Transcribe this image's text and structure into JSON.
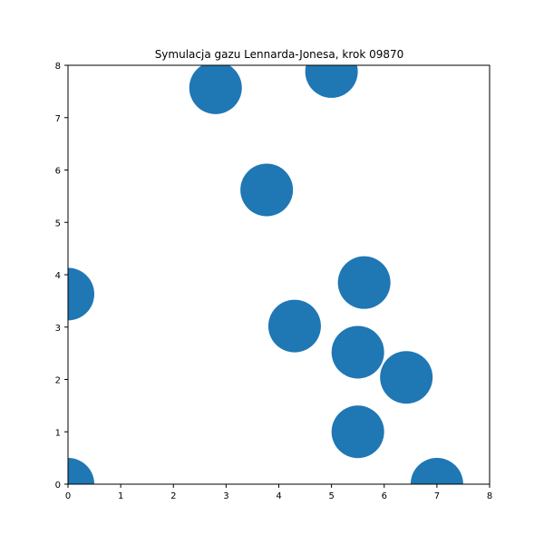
{
  "chart_data": {
    "type": "scatter",
    "title": "Symulacja gazu Lennarda-Jonesa, krok 09870",
    "xlabel": "",
    "ylabel": "",
    "xlim": [
      0,
      8
    ],
    "ylim": [
      0,
      8
    ],
    "x_ticks": [
      "0",
      "1",
      "2",
      "3",
      "4",
      "5",
      "6",
      "7",
      "8"
    ],
    "y_ticks": [
      "0",
      "1",
      "2",
      "3",
      "4",
      "5",
      "6",
      "7",
      "8"
    ],
    "grid": false,
    "marker_color": "#1f77b4",
    "points": [
      {
        "x": 2.8,
        "y": 7.57
      },
      {
        "x": 5.0,
        "y": 7.88
      },
      {
        "x": 3.77,
        "y": 5.62
      },
      {
        "x": 0.0,
        "y": 3.63
      },
      {
        "x": 5.62,
        "y": 3.85
      },
      {
        "x": 4.3,
        "y": 3.02
      },
      {
        "x": 5.5,
        "y": 2.52
      },
      {
        "x": 6.42,
        "y": 2.04
      },
      {
        "x": 5.5,
        "y": 1.0
      },
      {
        "x": 0.0,
        "y": 0.0
      },
      {
        "x": 7.0,
        "y": 0.0
      }
    ]
  }
}
